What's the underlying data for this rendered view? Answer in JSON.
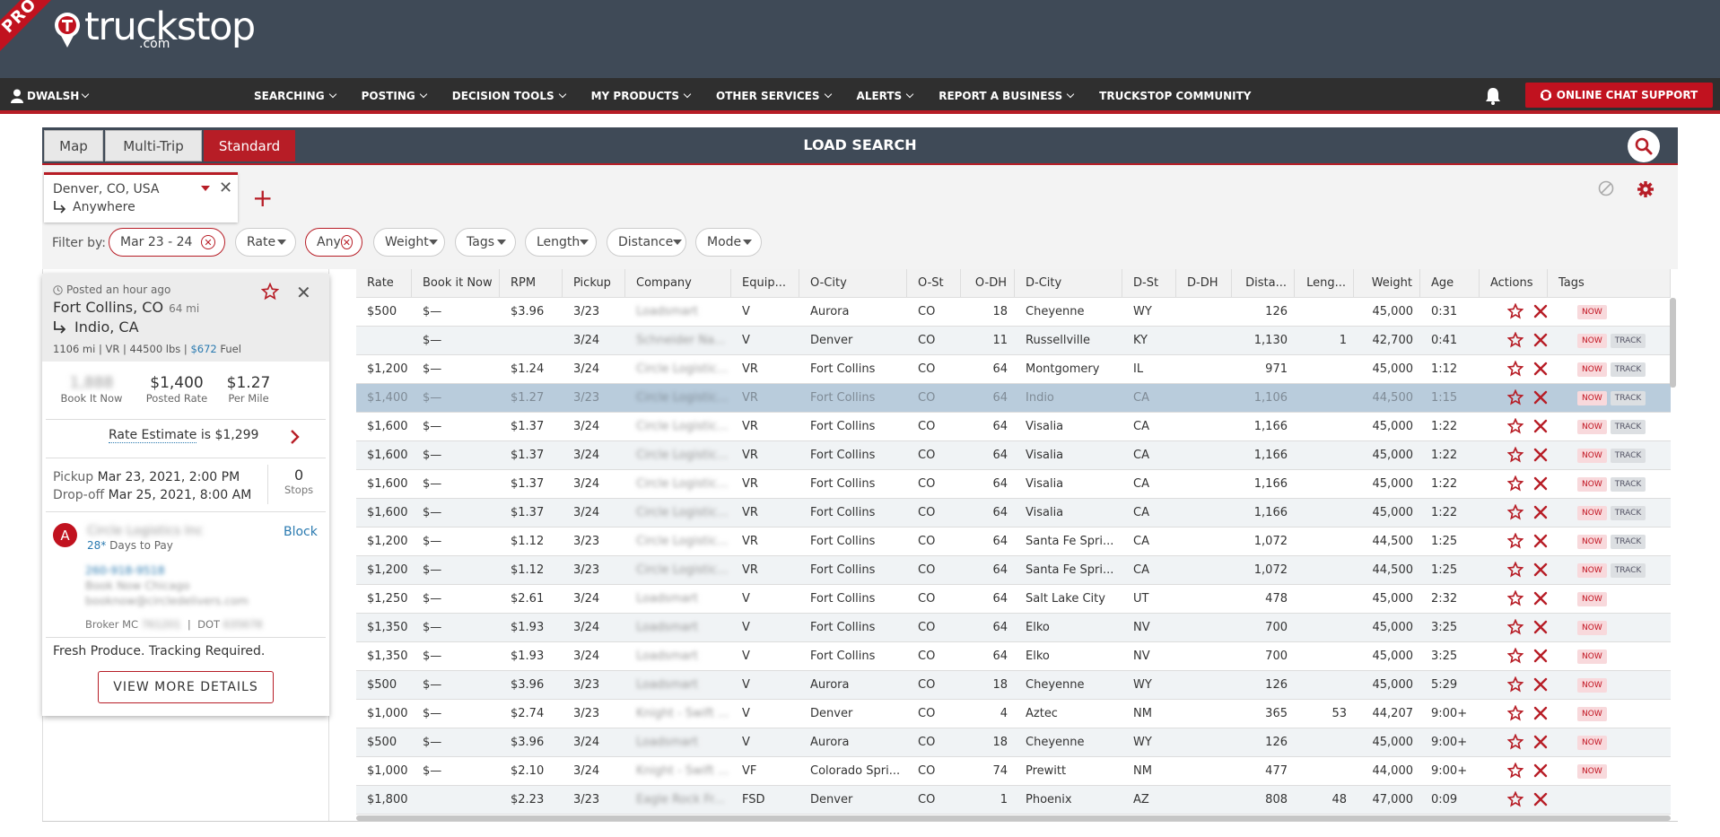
{
  "brand": {
    "ribbon": "PRO",
    "name": "truckstop",
    "suffix": ".com"
  },
  "nav": {
    "user": "DWALSH",
    "items": [
      "SEARCHING",
      "POSTING",
      "DECISION TOOLS",
      "MY PRODUCTS",
      "OTHER SERVICES",
      "ALERTS",
      "REPORT A BUSINESS",
      "TRUCKSTOP COMMUNITY"
    ],
    "chat": "ONLINE CHAT SUPPORT"
  },
  "search": {
    "tabs": [
      "Map",
      "Multi-Trip",
      "Standard"
    ],
    "active_tab": "Standard",
    "title": "LOAD SEARCH",
    "lane": {
      "origin": "Denver, CO, USA",
      "destination": "Anywhere"
    },
    "filter_label": "Filter by:",
    "filters": [
      "Mar 23 - 24",
      "Rate",
      "Any",
      "Weight",
      "Tags",
      "Length",
      "Distance",
      "Mode"
    ]
  },
  "detail": {
    "posted": "Posted an hour ago",
    "origin": "Fort Collins, CO",
    "deadhead": "64 mi",
    "destination": "Indio, CA",
    "specs": "1106 mi | VR | 44500 lbs |",
    "fuel_amount": "$672",
    "fuel_label": "Fuel",
    "book_it_now": "1,888",
    "book_it_now_label": "Book It Now",
    "posted_rate": "$1,400",
    "posted_rate_label": "Posted Rate",
    "per_mile": "$1.27",
    "per_mile_label": "Per Mile",
    "estimate_label": "Rate Estimate",
    "estimate_value": "is $1,299",
    "pickup_label": "Pickup",
    "pickup": "Mar 23, 2021, 2:00 PM",
    "dropoff_label": "Drop-off",
    "dropoff": "Mar 25, 2021, 8:00 AM",
    "stops": "0",
    "stops_label": "Stops",
    "avatar_letter": "A",
    "company": "Circle Logistics Inc",
    "days_to_pay": "28*",
    "days_to_pay_label": "Days to Pay",
    "block": "Block",
    "phone": "260-918-9518",
    "contact_name": "Book Now Chicago",
    "email": "booknow@circledelivers.com",
    "broker_mc_label": "Broker MC",
    "broker_mc": "761201",
    "dot_label": "DOT",
    "dot": "635678",
    "comment": "Fresh Produce. Tracking Required.",
    "more": "VIEW MORE DETAILS"
  },
  "table": {
    "columns": [
      "Rate",
      "Book it Now",
      "RPM",
      "Pickup",
      "Company",
      "Equip...",
      "O-City",
      "O-St",
      "O-DH",
      "D-City",
      "D-St",
      "D-DH",
      "Dista...",
      "Leng...",
      "Weight",
      "Age",
      "Actions",
      "Tags"
    ],
    "rows": [
      {
        "rate": "$500",
        "bin": "$—",
        "rpm": "$3.96",
        "pickup": "3/23",
        "company": "Loadsmart",
        "equip": "V",
        "ocity": "Aurora",
        "ost": "CO",
        "odh": "18",
        "dcity": "Cheyenne",
        "dst": "WY",
        "ddh": "",
        "dist": "126",
        "len": "",
        "weight": "45,000",
        "age": "0:31",
        "now": "NOW",
        "track": ""
      },
      {
        "rate": "",
        "bin": "$—",
        "rpm": "",
        "pickup": "3/24",
        "company": "Schneider Na...",
        "equip": "V",
        "ocity": "Denver",
        "ost": "CO",
        "odh": "11",
        "dcity": "Russellville",
        "dst": "KY",
        "ddh": "",
        "dist": "1,130",
        "len": "1",
        "weight": "42,700",
        "age": "0:41",
        "now": "NOW",
        "track": "TRACK"
      },
      {
        "rate": "$1,200",
        "bin": "$—",
        "rpm": "$1.24",
        "pickup": "3/24",
        "company": "Circle Logistic...",
        "equip": "VR",
        "ocity": "Fort Collins",
        "ost": "CO",
        "odh": "64",
        "dcity": "Montgomery",
        "dst": "IL",
        "ddh": "",
        "dist": "971",
        "len": "",
        "weight": "45,000",
        "age": "1:12",
        "now": "NOW",
        "track": "TRACK"
      },
      {
        "rate": "$1,400",
        "bin": "$—",
        "rpm": "$1.27",
        "pickup": "3/23",
        "company": "Circle Logistic...",
        "equip": "VR",
        "ocity": "Fort Collins",
        "ost": "CO",
        "odh": "64",
        "dcity": "Indio",
        "dst": "CA",
        "ddh": "",
        "dist": "1,106",
        "len": "",
        "weight": "44,500",
        "age": "1:15",
        "now": "NOW",
        "track": "TRACK",
        "selected": "yes"
      },
      {
        "rate": "$1,600",
        "bin": "$—",
        "rpm": "$1.37",
        "pickup": "3/24",
        "company": "Circle Logistic...",
        "equip": "VR",
        "ocity": "Fort Collins",
        "ost": "CO",
        "odh": "64",
        "dcity": "Visalia",
        "dst": "CA",
        "ddh": "",
        "dist": "1,166",
        "len": "",
        "weight": "45,000",
        "age": "1:22",
        "now": "NOW",
        "track": "TRACK"
      },
      {
        "rate": "$1,600",
        "bin": "$—",
        "rpm": "$1.37",
        "pickup": "3/24",
        "company": "Circle Logistic...",
        "equip": "VR",
        "ocity": "Fort Collins",
        "ost": "CO",
        "odh": "64",
        "dcity": "Visalia",
        "dst": "CA",
        "ddh": "",
        "dist": "1,166",
        "len": "",
        "weight": "45,000",
        "age": "1:22",
        "now": "NOW",
        "track": "TRACK"
      },
      {
        "rate": "$1,600",
        "bin": "$—",
        "rpm": "$1.37",
        "pickup": "3/24",
        "company": "Circle Logistic...",
        "equip": "VR",
        "ocity": "Fort Collins",
        "ost": "CO",
        "odh": "64",
        "dcity": "Visalia",
        "dst": "CA",
        "ddh": "",
        "dist": "1,166",
        "len": "",
        "weight": "45,000",
        "age": "1:22",
        "now": "NOW",
        "track": "TRACK"
      },
      {
        "rate": "$1,600",
        "bin": "$—",
        "rpm": "$1.37",
        "pickup": "3/24",
        "company": "Circle Logistic...",
        "equip": "VR",
        "ocity": "Fort Collins",
        "ost": "CO",
        "odh": "64",
        "dcity": "Visalia",
        "dst": "CA",
        "ddh": "",
        "dist": "1,166",
        "len": "",
        "weight": "45,000",
        "age": "1:22",
        "now": "NOW",
        "track": "TRACK"
      },
      {
        "rate": "$1,200",
        "bin": "$—",
        "rpm": "$1.12",
        "pickup": "3/23",
        "company": "Circle Logistic...",
        "equip": "VR",
        "ocity": "Fort Collins",
        "ost": "CO",
        "odh": "64",
        "dcity": "Santa Fe Spri...",
        "dst": "CA",
        "ddh": "",
        "dist": "1,072",
        "len": "",
        "weight": "44,500",
        "age": "1:25",
        "now": "NOW",
        "track": "TRACK"
      },
      {
        "rate": "$1,200",
        "bin": "$—",
        "rpm": "$1.12",
        "pickup": "3/23",
        "company": "Circle Logistic...",
        "equip": "VR",
        "ocity": "Fort Collins",
        "ost": "CO",
        "odh": "64",
        "dcity": "Santa Fe Spri...",
        "dst": "CA",
        "ddh": "",
        "dist": "1,072",
        "len": "",
        "weight": "44,500",
        "age": "1:25",
        "now": "NOW",
        "track": "TRACK"
      },
      {
        "rate": "$1,250",
        "bin": "$—",
        "rpm": "$2.61",
        "pickup": "3/24",
        "company": "Loadsmart",
        "equip": "V",
        "ocity": "Fort Collins",
        "ost": "CO",
        "odh": "64",
        "dcity": "Salt Lake City",
        "dst": "UT",
        "ddh": "",
        "dist": "478",
        "len": "",
        "weight": "45,000",
        "age": "2:32",
        "now": "NOW",
        "track": ""
      },
      {
        "rate": "$1,350",
        "bin": "$—",
        "rpm": "$1.93",
        "pickup": "3/24",
        "company": "Loadsmart",
        "equip": "V",
        "ocity": "Fort Collins",
        "ost": "CO",
        "odh": "64",
        "dcity": "Elko",
        "dst": "NV",
        "ddh": "",
        "dist": "700",
        "len": "",
        "weight": "45,000",
        "age": "3:25",
        "now": "NOW",
        "track": ""
      },
      {
        "rate": "$1,350",
        "bin": "$—",
        "rpm": "$1.93",
        "pickup": "3/24",
        "company": "Loadsmart",
        "equip": "V",
        "ocity": "Fort Collins",
        "ost": "CO",
        "odh": "64",
        "dcity": "Elko",
        "dst": "NV",
        "ddh": "",
        "dist": "700",
        "len": "",
        "weight": "45,000",
        "age": "3:25",
        "now": "NOW",
        "track": ""
      },
      {
        "rate": "$500",
        "bin": "$—",
        "rpm": "$3.96",
        "pickup": "3/23",
        "company": "Loadsmart",
        "equip": "V",
        "ocity": "Aurora",
        "ost": "CO",
        "odh": "18",
        "dcity": "Cheyenne",
        "dst": "WY",
        "ddh": "",
        "dist": "126",
        "len": "",
        "weight": "45,000",
        "age": "5:29",
        "now": "NOW",
        "track": ""
      },
      {
        "rate": "$1,000",
        "bin": "$—",
        "rpm": "$2.74",
        "pickup": "3/23",
        "company": "Knight - Swift ...",
        "equip": "V",
        "ocity": "Denver",
        "ost": "CO",
        "odh": "4",
        "dcity": "Aztec",
        "dst": "NM",
        "ddh": "",
        "dist": "365",
        "len": "53",
        "weight": "44,207",
        "age": "9:00+",
        "now": "NOW",
        "track": ""
      },
      {
        "rate": "$500",
        "bin": "$—",
        "rpm": "$3.96",
        "pickup": "3/24",
        "company": "Loadsmart",
        "equip": "V",
        "ocity": "Aurora",
        "ost": "CO",
        "odh": "18",
        "dcity": "Cheyenne",
        "dst": "WY",
        "ddh": "",
        "dist": "126",
        "len": "",
        "weight": "45,000",
        "age": "9:00+",
        "now": "NOW",
        "track": ""
      },
      {
        "rate": "$1,000",
        "bin": "$—",
        "rpm": "$2.10",
        "pickup": "3/24",
        "company": "Knight - Swift ...",
        "equip": "VF",
        "ocity": "Colorado Spri...",
        "ost": "CO",
        "odh": "74",
        "dcity": "Prewitt",
        "dst": "NM",
        "ddh": "",
        "dist": "477",
        "len": "",
        "weight": "44,000",
        "age": "9:00+",
        "now": "NOW",
        "track": ""
      },
      {
        "rate": "$1,800",
        "bin": "",
        "rpm": "$2.23",
        "pickup": "3/23",
        "company": "Eagle Rock Fr...",
        "equip": "FSD",
        "ocity": "Denver",
        "ost": "CO",
        "odh": "1",
        "dcity": "Phoenix",
        "dst": "AZ",
        "ddh": "",
        "dist": "808",
        "len": "48",
        "weight": "47,000",
        "age": "0:09",
        "now": "",
        "track": ""
      }
    ]
  },
  "colors": {
    "accent": "#b71d26",
    "header": "#3f4a57",
    "nav": "#2f2f2f",
    "selected_row": "#b9ccdc"
  }
}
